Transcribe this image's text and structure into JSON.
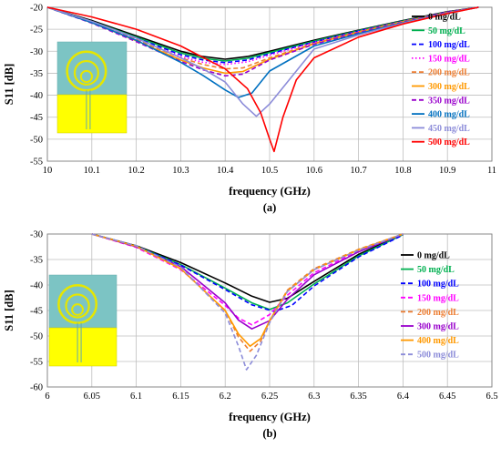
{
  "chart_data": [
    {
      "type": "line",
      "panel_label": "(a)",
      "xlabel": "frequency (GHz)",
      "ylabel": "S11 [dB]",
      "xlim": [
        10,
        11
      ],
      "ylim": [
        -55,
        -20
      ],
      "xticks": [
        "10",
        "10.1",
        "10.2",
        "10.3",
        "10.4",
        "10.5",
        "10.6",
        "10.7",
        "10.8",
        "10.9",
        "11"
      ],
      "yticks": [
        "-20",
        "-25",
        "-30",
        "-35",
        "-40",
        "-45",
        "-50",
        "-55"
      ],
      "grid": true,
      "legend_position": "right",
      "series": [
        {
          "name": "0 mg/dL",
          "color": "#000000",
          "dash": "solid",
          "x": [
            10.0,
            10.1,
            10.2,
            10.3,
            10.35,
            10.4,
            10.45,
            10.5,
            10.6,
            10.7,
            10.8,
            10.9,
            10.97
          ],
          "y": [
            -20.0,
            -23.0,
            -26.5,
            -30.0,
            -31.2,
            -31.8,
            -31.2,
            -30.0,
            -27.5,
            -25.2,
            -23.0,
            -21.0,
            -20.0
          ]
        },
        {
          "name": "50  mg/dL",
          "color": "#00b050",
          "dash": "solid",
          "x": [
            10.0,
            10.1,
            10.2,
            10.3,
            10.35,
            10.4,
            10.45,
            10.5,
            10.6,
            10.7,
            10.8,
            10.9,
            10.97
          ],
          "y": [
            -20.0,
            -23.2,
            -26.8,
            -30.4,
            -31.6,
            -32.2,
            -31.6,
            -30.3,
            -27.7,
            -25.3,
            -23.1,
            -21.1,
            -20.0
          ]
        },
        {
          "name": "100 mg/dL",
          "color": "#0000ff",
          "dash": "dash",
          "x": [
            10.0,
            10.1,
            10.2,
            10.3,
            10.35,
            10.4,
            10.45,
            10.5,
            10.6,
            10.7,
            10.8,
            10.9,
            10.97
          ],
          "y": [
            -20.0,
            -23.3,
            -27.0,
            -30.8,
            -32.0,
            -32.6,
            -32.0,
            -30.6,
            -27.9,
            -25.4,
            -23.2,
            -21.1,
            -20.0
          ]
        },
        {
          "name": "150 mg/dL",
          "color": "#ff00ff",
          "dash": "dot",
          "x": [
            10.0,
            10.1,
            10.2,
            10.3,
            10.35,
            10.4,
            10.45,
            10.5,
            10.6,
            10.7,
            10.8,
            10.9,
            10.97
          ],
          "y": [
            -20.0,
            -23.3,
            -27.2,
            -31.2,
            -32.5,
            -33.0,
            -32.4,
            -30.9,
            -28.0,
            -25.5,
            -23.2,
            -21.1,
            -20.0
          ]
        },
        {
          "name": "200  mg/dL",
          "color": "#ed7d31",
          "dash": "dash",
          "x": [
            10.0,
            10.1,
            10.2,
            10.3,
            10.35,
            10.4,
            10.44,
            10.5,
            10.6,
            10.7,
            10.8,
            10.9,
            10.97
          ],
          "y": [
            -20.0,
            -23.4,
            -27.4,
            -31.5,
            -33.0,
            -34.0,
            -33.8,
            -31.5,
            -28.2,
            -25.6,
            -23.3,
            -21.2,
            -20.0
          ]
        },
        {
          "name": "300  mg/dL",
          "color": "#ff9900",
          "dash": "solid",
          "x": [
            10.0,
            10.1,
            10.2,
            10.3,
            10.35,
            10.4,
            10.44,
            10.5,
            10.6,
            10.7,
            10.8,
            10.9,
            10.97
          ],
          "y": [
            -20.0,
            -23.5,
            -27.6,
            -32.0,
            -33.8,
            -35.0,
            -34.6,
            -31.8,
            -28.3,
            -25.7,
            -23.3,
            -21.2,
            -20.0
          ]
        },
        {
          "name": "350  mg/dL",
          "color": "#9900cc",
          "dash": "dash",
          "x": [
            10.0,
            10.1,
            10.2,
            10.3,
            10.35,
            10.4,
            10.44,
            10.5,
            10.6,
            10.7,
            10.8,
            10.9,
            10.97
          ],
          "y": [
            -20.0,
            -23.6,
            -27.8,
            -32.3,
            -34.2,
            -35.6,
            -35.2,
            -32.0,
            -28.4,
            -25.8,
            -23.4,
            -21.2,
            -20.0
          ]
        },
        {
          "name": "400  mg/dL",
          "color": "#0070c0",
          "dash": "solid",
          "x": [
            10.0,
            10.1,
            10.2,
            10.3,
            10.35,
            10.4,
            10.43,
            10.46,
            10.5,
            10.6,
            10.7,
            10.8,
            10.9,
            10.97
          ],
          "y": [
            -20.0,
            -23.5,
            -27.5,
            -32.5,
            -35.5,
            -38.8,
            -40.5,
            -39.5,
            -34.5,
            -28.8,
            -26.0,
            -23.5,
            -21.3,
            -20.0
          ]
        },
        {
          "name": "450  mg/dL",
          "color": "#8c8cd9",
          "dash": "solid",
          "x": [
            10.0,
            10.1,
            10.2,
            10.3,
            10.35,
            10.4,
            10.44,
            10.47,
            10.5,
            10.6,
            10.7,
            10.8,
            10.9,
            10.97
          ],
          "y": [
            -20.0,
            -23.2,
            -27.0,
            -31.5,
            -34.0,
            -37.0,
            -42.0,
            -44.8,
            -42.0,
            -29.5,
            -26.3,
            -23.6,
            -21.3,
            -20.0
          ]
        },
        {
          "name": "500 mg/dL",
          "color": "#ff0000",
          "dash": "solid",
          "x": [
            10.0,
            10.1,
            10.2,
            10.3,
            10.4,
            10.45,
            10.48,
            10.5,
            10.51,
            10.53,
            10.56,
            10.6,
            10.7,
            10.8,
            10.9,
            10.97
          ],
          "y": [
            -20.0,
            -22.2,
            -25.0,
            -28.8,
            -34.0,
            -38.5,
            -44.0,
            -50.0,
            -52.8,
            -45.0,
            -36.5,
            -31.5,
            -26.8,
            -23.8,
            -21.4,
            -20.0
          ]
        }
      ]
    },
    {
      "type": "line",
      "panel_label": "(b)",
      "xlabel": "frequency (GHz)",
      "ylabel": "S11 [dB]",
      "xlim": [
        6,
        6.5
      ],
      "ylim": [
        -60,
        -30
      ],
      "xticks": [
        "6",
        "6.05",
        "6.1",
        "6.15",
        "6.2",
        "6.25",
        "6.3",
        "6.35",
        "6.4",
        "6.45",
        "6.5"
      ],
      "yticks": [
        "-30",
        "-35",
        "-40",
        "-45",
        "-50",
        "-55",
        "-60"
      ],
      "grid": true,
      "legend_position": "right",
      "series": [
        {
          "name": "0 mg/dL",
          "color": "#000000",
          "dash": "solid",
          "x": [
            6.05,
            6.1,
            6.15,
            6.2,
            6.23,
            6.25,
            6.27,
            6.3,
            6.35,
            6.4
          ],
          "y": [
            -30.0,
            -32.3,
            -35.6,
            -39.6,
            -42.2,
            -43.4,
            -42.6,
            -39.3,
            -34.0,
            -30.0
          ]
        },
        {
          "name": "50  mg/dL",
          "color": "#00b050",
          "dash": "solid",
          "x": [
            6.05,
            6.1,
            6.15,
            6.2,
            6.23,
            6.25,
            6.27,
            6.3,
            6.35,
            6.4
          ],
          "y": [
            -30.0,
            -32.4,
            -36.0,
            -40.6,
            -43.5,
            -44.8,
            -43.5,
            -39.8,
            -34.3,
            -30.1
          ]
        },
        {
          "name": "100  mg/dL",
          "color": "#0000ff",
          "dash": "dash",
          "x": [
            6.05,
            6.1,
            6.15,
            6.2,
            6.23,
            6.255,
            6.275,
            6.3,
            6.35,
            6.4
          ],
          "y": [
            -30.0,
            -32.4,
            -36.1,
            -40.9,
            -43.9,
            -45.2,
            -44.0,
            -40.2,
            -34.5,
            -30.2
          ]
        },
        {
          "name": "150  mg/dL",
          "color": "#ff00ff",
          "dash": "dash",
          "x": [
            6.05,
            6.1,
            6.15,
            6.2,
            6.215,
            6.23,
            6.25,
            6.27,
            6.3,
            6.35,
            6.4
          ],
          "y": [
            -30.0,
            -32.6,
            -37.0,
            -44.0,
            -46.5,
            -47.8,
            -45.8,
            -42.0,
            -37.6,
            -33.3,
            -30.0
          ]
        },
        {
          "name": "200  mg/dL",
          "color": "#ed7d31",
          "dash": "dash",
          "x": [
            6.05,
            6.1,
            6.15,
            6.2,
            6.215,
            6.228,
            6.24,
            6.25,
            6.27,
            6.3,
            6.35,
            6.4
          ],
          "y": [
            -30.0,
            -32.4,
            -36.8,
            -45.0,
            -50.2,
            -53.0,
            -51.0,
            -47.0,
            -41.0,
            -36.8,
            -33.0,
            -30.0
          ]
        },
        {
          "name": "300  mg/dL",
          "color": "#9900cc",
          "dash": "solid",
          "x": [
            6.05,
            6.1,
            6.15,
            6.2,
            6.215,
            6.23,
            6.25,
            6.27,
            6.3,
            6.35,
            6.4
          ],
          "y": [
            -30.0,
            -32.5,
            -36.4,
            -43.5,
            -46.9,
            -48.6,
            -47.0,
            -42.8,
            -38.0,
            -33.5,
            -30.0
          ]
        },
        {
          "name": "400  mg/dL",
          "color": "#ff9900",
          "dash": "solid",
          "x": [
            6.05,
            6.1,
            6.15,
            6.2,
            6.215,
            6.228,
            6.24,
            6.25,
            6.27,
            6.3,
            6.35,
            6.4
          ],
          "y": [
            -30.0,
            -32.4,
            -36.8,
            -45.0,
            -49.6,
            -52.0,
            -50.5,
            -47.0,
            -41.2,
            -37.0,
            -33.1,
            -30.0
          ]
        },
        {
          "name": "500  mg/dL",
          "color": "#8c8cd9",
          "dash": "dash",
          "x": [
            6.05,
            6.1,
            6.15,
            6.2,
            6.215,
            6.224,
            6.235,
            6.25,
            6.27,
            6.3,
            6.35,
            6.4
          ],
          "y": [
            -30.0,
            -32.3,
            -36.5,
            -45.5,
            -52.0,
            -56.6,
            -53.8,
            -47.4,
            -41.3,
            -37.0,
            -33.2,
            -30.0
          ]
        }
      ]
    }
  ]
}
